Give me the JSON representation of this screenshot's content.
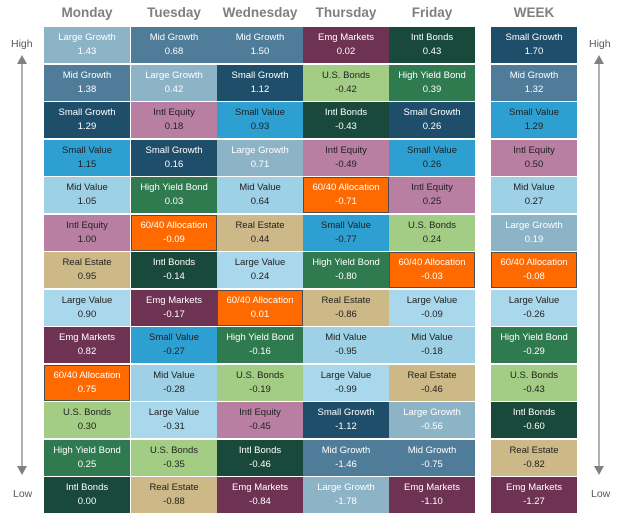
{
  "columns": [
    "Monday",
    "Tuesday",
    "Wednesday",
    "Thursday",
    "Friday",
    "WEEK"
  ],
  "side_labels": {
    "top": "High",
    "bottom": "Low"
  },
  "colors": {
    "Large Growth": "#8db3c7",
    "Mid Growth": "#4f7c99",
    "Small Growth": "#1f4e6b",
    "Small Value": "#2e9fd1",
    "Mid Value": "#9ed0e6",
    "Large Value": "#a9d7ec",
    "Intl Equity": "#b87fa3",
    "Emg Markets": "#6e3252",
    "Real Estate": "#cdb887",
    "U.S. Bonds": "#a3cd84",
    "High Yield Bond": "#2f7a4f",
    "Intl Bonds": "#19493a",
    "60/40 Allocation": "#ff6a00"
  },
  "dark_text_assets": [
    "Large Growth",
    "Mid Growth",
    "Small Growth",
    "Emg Markets",
    "High Yield Bond",
    "Intl Bonds",
    "60/40 Allocation"
  ],
  "highlight_asset": "60/40 Allocation",
  "chart_data": {
    "type": "table",
    "title": "",
    "ranking_order": "High to Low",
    "columns": [
      {
        "name": "Monday",
        "rows": [
          {
            "asset": "Large Growth",
            "value": "1.43"
          },
          {
            "asset": "Mid Growth",
            "value": "1.38"
          },
          {
            "asset": "Small Growth",
            "value": "1.29"
          },
          {
            "asset": "Small Value",
            "value": "1.15"
          },
          {
            "asset": "Mid Value",
            "value": "1.05"
          },
          {
            "asset": "Intl Equity",
            "value": "1.00"
          },
          {
            "asset": "Real Estate",
            "value": "0.95"
          },
          {
            "asset": "Large Value",
            "value": "0.90"
          },
          {
            "asset": "Emg Markets",
            "value": "0.82"
          },
          {
            "asset": "60/40 Allocation",
            "value": "0.75"
          },
          {
            "asset": "U.S. Bonds",
            "value": "0.30"
          },
          {
            "asset": "High Yield Bond",
            "value": "0.25"
          },
          {
            "asset": "Intl Bonds",
            "value": "0.00"
          }
        ]
      },
      {
        "name": "Tuesday",
        "rows": [
          {
            "asset": "Mid Growth",
            "value": "0.68"
          },
          {
            "asset": "Large Growth",
            "value": "0.42"
          },
          {
            "asset": "Intl Equity",
            "value": "0.18"
          },
          {
            "asset": "Small Growth",
            "value": "0.16"
          },
          {
            "asset": "High Yield Bond",
            "value": "0.03"
          },
          {
            "asset": "60/40 Allocation",
            "value": "-0.09"
          },
          {
            "asset": "Intl Bonds",
            "value": "-0.14"
          },
          {
            "asset": "Emg Markets",
            "value": "-0.17"
          },
          {
            "asset": "Small Value",
            "value": "-0.27"
          },
          {
            "asset": "Mid Value",
            "value": "-0.28"
          },
          {
            "asset": "Large Value",
            "value": "-0.31"
          },
          {
            "asset": "U.S. Bonds",
            "value": "-0.35"
          },
          {
            "asset": "Real Estate",
            "value": "-0.88"
          }
        ]
      },
      {
        "name": "Wednesday",
        "rows": [
          {
            "asset": "Mid Growth",
            "value": "1.50"
          },
          {
            "asset": "Small Growth",
            "value": "1.12"
          },
          {
            "asset": "Small Value",
            "value": "0.93"
          },
          {
            "asset": "Large Growth",
            "value": "0.71"
          },
          {
            "asset": "Mid Value",
            "value": "0.64"
          },
          {
            "asset": "Real Estate",
            "value": "0.44"
          },
          {
            "asset": "Large Value",
            "value": "0.24"
          },
          {
            "asset": "60/40 Allocation",
            "value": "0.01"
          },
          {
            "asset": "High Yield Bond",
            "value": "-0.16"
          },
          {
            "asset": "U.S. Bonds",
            "value": "-0.19"
          },
          {
            "asset": "Intl Equity",
            "value": "-0.45"
          },
          {
            "asset": "Intl Bonds",
            "value": "-0.46"
          },
          {
            "asset": "Emg Markets",
            "value": "-0.84"
          }
        ]
      },
      {
        "name": "Thursday",
        "rows": [
          {
            "asset": "Emg Markets",
            "value": "0.02"
          },
          {
            "asset": "U.S. Bonds",
            "value": "-0.42"
          },
          {
            "asset": "Intl Bonds",
            "value": "-0.43"
          },
          {
            "asset": "Intl Equity",
            "value": "-0.49"
          },
          {
            "asset": "60/40 Allocation",
            "value": "-0.71"
          },
          {
            "asset": "Small Value",
            "value": "-0.77"
          },
          {
            "asset": "High Yield Bond",
            "value": "-0.80"
          },
          {
            "asset": "Real Estate",
            "value": "-0.86"
          },
          {
            "asset": "Mid Value",
            "value": "-0.95"
          },
          {
            "asset": "Large Value",
            "value": "-0.99"
          },
          {
            "asset": "Small Growth",
            "value": "-1.12"
          },
          {
            "asset": "Mid Growth",
            "value": "-1.46"
          },
          {
            "asset": "Large Growth",
            "value": "-1.78"
          }
        ]
      },
      {
        "name": "Friday",
        "rows": [
          {
            "asset": "Intl Bonds",
            "value": "0.43"
          },
          {
            "asset": "High Yield Bond",
            "value": "0.39"
          },
          {
            "asset": "Small Growth",
            "value": "0.26"
          },
          {
            "asset": "Small Value",
            "value": "0.26"
          },
          {
            "asset": "Intl Equity",
            "value": "0.25"
          },
          {
            "asset": "U.S. Bonds",
            "value": "0.24"
          },
          {
            "asset": "60/40 Allocation",
            "value": "-0.03"
          },
          {
            "asset": "Large Value",
            "value": "-0.09"
          },
          {
            "asset": "Mid Value",
            "value": "-0.18"
          },
          {
            "asset": "Real Estate",
            "value": "-0.46"
          },
          {
            "asset": "Large Growth",
            "value": "-0.56"
          },
          {
            "asset": "Mid Growth",
            "value": "-0.75"
          },
          {
            "asset": "Emg Markets",
            "value": "-1.10"
          }
        ]
      },
      {
        "name": "WEEK",
        "rows": [
          {
            "asset": "Small Growth",
            "value": "1.70"
          },
          {
            "asset": "Mid Growth",
            "value": "1.32"
          },
          {
            "asset": "Small Value",
            "value": "1.29"
          },
          {
            "asset": "Intl Equity",
            "value": "0.50"
          },
          {
            "asset": "Mid Value",
            "value": "0.27"
          },
          {
            "asset": "Large Growth",
            "value": "0.19"
          },
          {
            "asset": "60/40 Allocation",
            "value": "-0.08"
          },
          {
            "asset": "Large Value",
            "value": "-0.26"
          },
          {
            "asset": "High Yield Bond",
            "value": "-0.29"
          },
          {
            "asset": "U.S. Bonds",
            "value": "-0.43"
          },
          {
            "asset": "Intl Bonds",
            "value": "-0.60"
          },
          {
            "asset": "Real Estate",
            "value": "-0.82"
          },
          {
            "asset": "Emg Markets",
            "value": "-1.27"
          }
        ]
      }
    ]
  }
}
